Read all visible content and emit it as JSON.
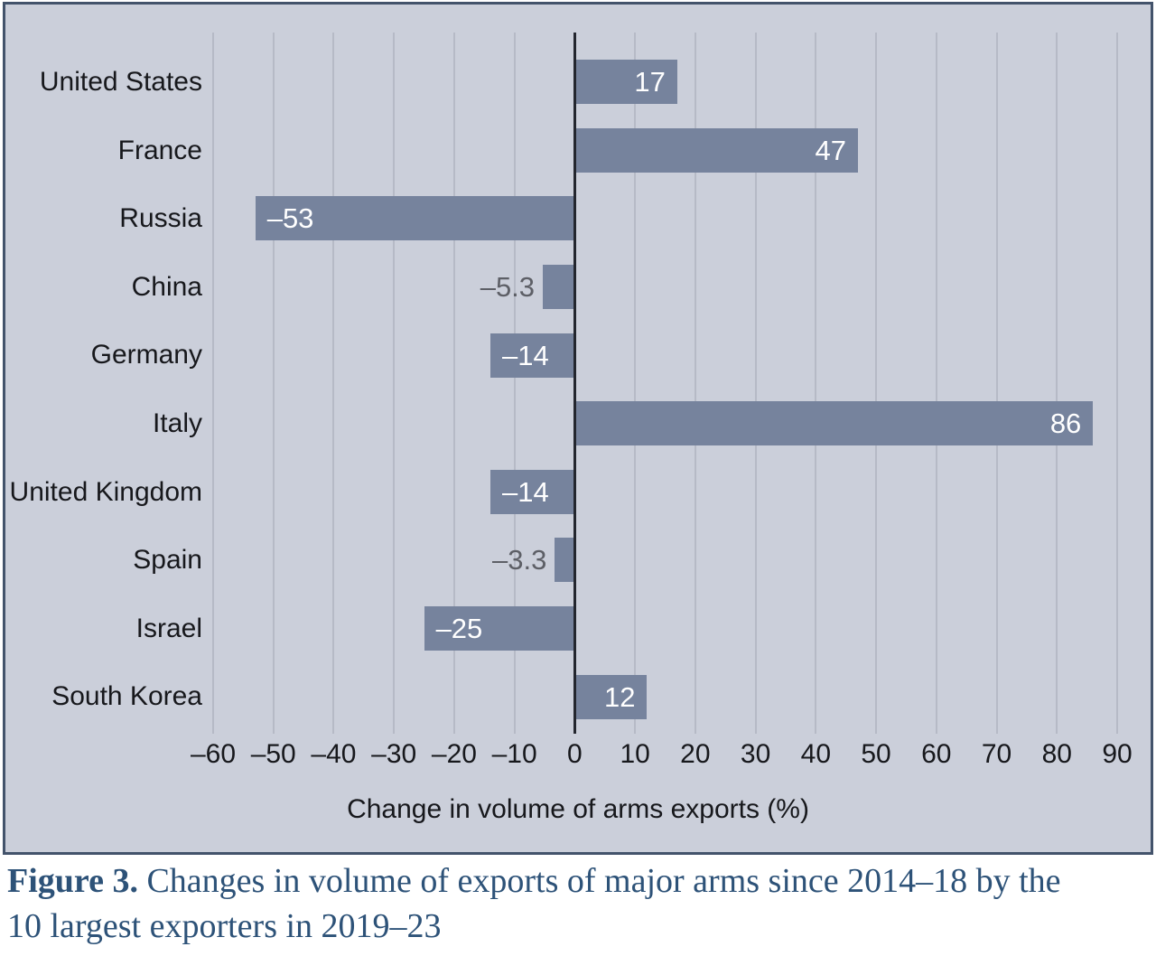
{
  "figure": {
    "caption_bold": "Figure 3.",
    "caption_line1": " Changes in volume of exports of major arms since 2014–18 by the",
    "caption_line2": "10 largest exporters in 2019–23"
  },
  "chart_data": {
    "type": "bar",
    "orientation": "horizontal",
    "title": "",
    "xlabel": "Change in volume of arms exports (%)",
    "ylabel": "",
    "categories": [
      "United States",
      "France",
      "Russia",
      "China",
      "Germany",
      "Italy",
      "United Kingdom",
      "Spain",
      "Israel",
      "South Korea"
    ],
    "values": [
      17,
      47,
      -53,
      -5.3,
      -14,
      86,
      -14,
      -3.3,
      -25,
      12
    ],
    "value_labels": [
      "17",
      "47",
      "–53",
      "–5.3",
      "–14",
      "86",
      "–14",
      "–3.3",
      "–25",
      "12"
    ],
    "value_label_positions": [
      "inside",
      "inside",
      "inside",
      "outside",
      "inside",
      "inside",
      "inside",
      "outside",
      "inside",
      "inside"
    ],
    "xlim": [
      -60,
      90
    ],
    "xticks": [
      -60,
      -50,
      -40,
      -30,
      -20,
      -10,
      0,
      10,
      20,
      30,
      40,
      50,
      60,
      70,
      80,
      90
    ],
    "xtick_labels": [
      "–60",
      "–50",
      "–40",
      "–30",
      "–20",
      "–10",
      "0",
      "10",
      "20",
      "30",
      "40",
      "50",
      "60",
      "70",
      "80",
      "90"
    ],
    "grid": "vertical",
    "legend": "none",
    "colors": {
      "bar": "#76839d",
      "plot_background": "#cbcfda",
      "gridline": "#b6bac6",
      "zero_line": "#23262e",
      "bar_label_inside": "#ffffff",
      "bar_label_outside": "#5d5f66",
      "axis_text": "#17181c",
      "panel_border": "#43536b",
      "caption_text": "#2d5278"
    }
  }
}
